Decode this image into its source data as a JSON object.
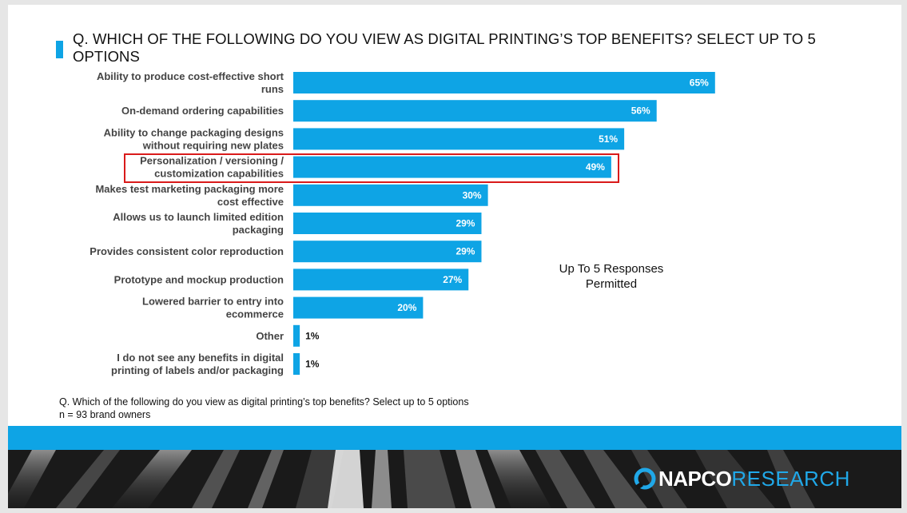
{
  "title": "Q. WHICH OF THE FOLLOWING DO YOU VIEW AS DIGITAL PRINTING’S TOP BENEFITS? SELECT UP TO 5 OPTIONS",
  "note": {
    "line1": "Up To 5 Responses",
    "line2": "Permitted"
  },
  "footnote": {
    "question": "Q. Which of the following do you view as digital printing’s top benefits? Select up to 5 options",
    "sample": "n = 93 brand owners"
  },
  "logo": {
    "part1": "NAPCO",
    "part2": "RESEARCH",
    "icon": "napco-ring-icon"
  },
  "colors": {
    "bar": "#0ea4e5",
    "highlight": "#d91a1a",
    "band": "#0ea4e5"
  },
  "chart_data": {
    "type": "bar",
    "orientation": "horizontal",
    "categories": [
      [
        "Ability to produce cost-effective short",
        "runs"
      ],
      [
        "On-demand ordering capabilities"
      ],
      [
        "Ability to change packaging designs",
        "without requiring new plates"
      ],
      [
        "Personalization / versioning /",
        "customization capabilities"
      ],
      [
        "Makes test marketing packaging more",
        "cost effective"
      ],
      [
        "Allows us to launch limited edition",
        "packaging"
      ],
      [
        "Provides consistent color reproduction"
      ],
      [
        "Prototype and mockup production"
      ],
      [
        "Lowered barrier to entry into",
        "ecommerce"
      ],
      [
        "Other"
      ],
      [
        "I do not see any benefits in digital",
        "printing of labels and/or packaging"
      ]
    ],
    "values": [
      65,
      56,
      51,
      49,
      30,
      29,
      29,
      27,
      20,
      1,
      1
    ],
    "value_labels": [
      "65%",
      "56%",
      "51%",
      "49%",
      "30%",
      "29%",
      "29%",
      "27%",
      "20%",
      "1%",
      "1%"
    ],
    "highlighted_index": 3,
    "xlim": [
      0,
      100
    ],
    "grid": false,
    "legend": "none"
  }
}
